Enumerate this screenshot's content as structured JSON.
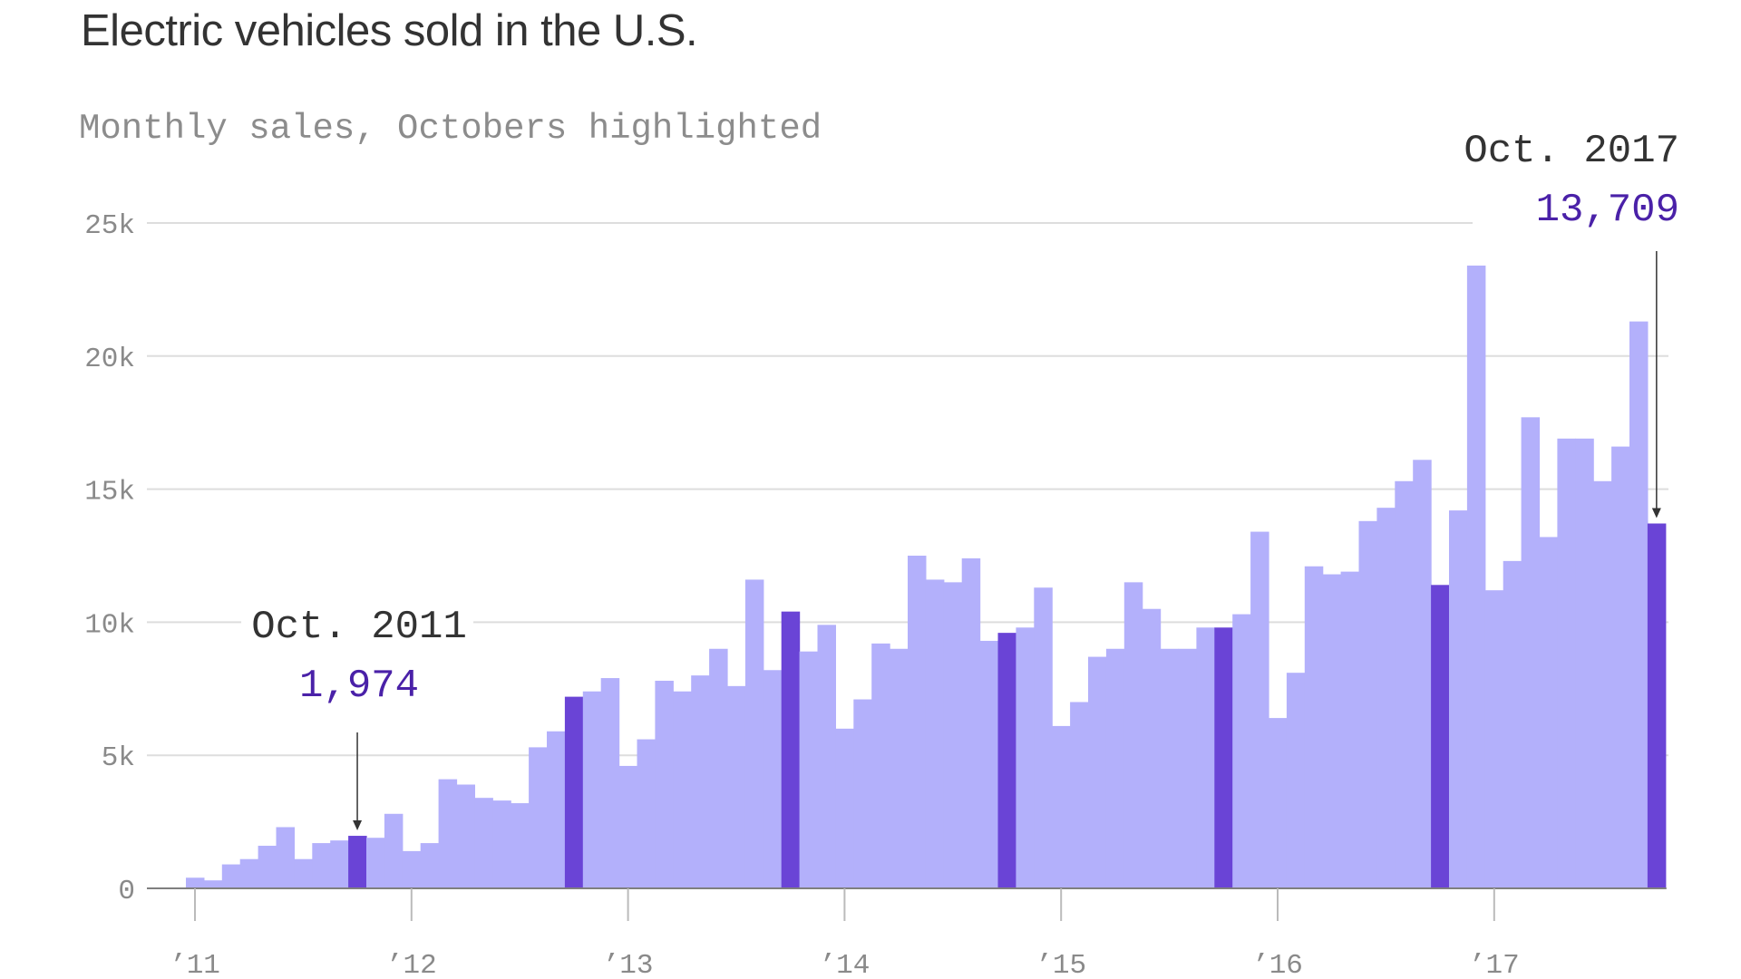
{
  "chart_data": {
    "type": "bar",
    "title": "Electric vehicles sold in the U.S.",
    "subtitle": "Monthly sales, Octobers highlighted",
    "start": "2011-01",
    "ylim": [
      0,
      25000
    ],
    "y_ticks": [
      {
        "value": 0,
        "label": "0"
      },
      {
        "value": 5000,
        "label": "5k"
      },
      {
        "value": 10000,
        "label": "10k"
      },
      {
        "value": 15000,
        "label": "15k"
      },
      {
        "value": 20000,
        "label": "20k"
      },
      {
        "value": 25000,
        "label": "25k"
      }
    ],
    "x_ticks": [
      {
        "year": 2011,
        "label": "’11"
      },
      {
        "year": 2012,
        "label": "’12"
      },
      {
        "year": 2013,
        "label": "’13"
      },
      {
        "year": 2014,
        "label": "’14"
      },
      {
        "year": 2015,
        "label": "’15"
      },
      {
        "year": 2016,
        "label": "’16"
      },
      {
        "year": 2017,
        "label": "’17"
      }
    ],
    "grid": true,
    "colors": {
      "bar": "#b3b0fb",
      "highlight": "#6a44d6",
      "annotation_value": "#4a21a8",
      "grid": "#dddddd",
      "axis": "#7f7f7f"
    },
    "values": [
      400,
      300,
      900,
      1100,
      1600,
      2300,
      1100,
      1700,
      1800,
      1974,
      1900,
      2800,
      1400,
      1700,
      4100,
      3900,
      3400,
      3300,
      3200,
      5300,
      5900,
      7200,
      7400,
      7900,
      4600,
      5600,
      7800,
      7400,
      8000,
      9000,
      7600,
      11600,
      8200,
      10400,
      8900,
      9900,
      6000,
      7100,
      9200,
      9000,
      12500,
      11600,
      11500,
      12400,
      9300,
      9600,
      9800,
      11300,
      6100,
      7000,
      8700,
      9000,
      11500,
      10500,
      9000,
      9000,
      9800,
      9800,
      10300,
      13400,
      6400,
      8100,
      12100,
      11800,
      11900,
      13800,
      14300,
      15300,
      16100,
      11400,
      14200,
      23400,
      11200,
      12300,
      17700,
      13200,
      16900,
      16900,
      15300,
      16600,
      21300,
      13709
    ],
    "annotations": [
      {
        "index": 9,
        "label": "Oct. 2011",
        "value_label": "1,974"
      },
      {
        "index": 81,
        "label": "Oct. 2017",
        "value_label": "13,709"
      }
    ]
  }
}
